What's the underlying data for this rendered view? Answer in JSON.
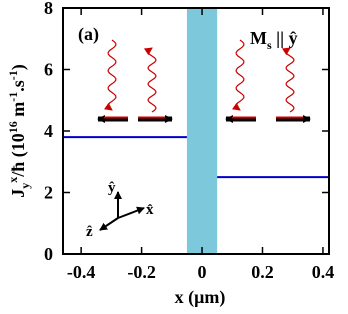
{
  "chart_data": {
    "type": "line",
    "ylabel": [
      "J",
      "y",
      "x",
      "/ħ (10",
      "16",
      " m",
      "-1",
      ".s",
      "-1",
      ")"
    ],
    "xlabel": "x (μm)",
    "panel_label": "(a)",
    "ms_label": [
      "M",
      "s",
      " || ŷ"
    ],
    "axis_labels": {
      "y": "ŷ",
      "x": "x̂",
      "z": "ẑ"
    },
    "xlim": [
      -0.46,
      0.42
    ],
    "ylim": [
      0,
      8
    ],
    "xticks": [
      -0.4,
      -0.2,
      0,
      0.2,
      0.4
    ],
    "yticks": [
      0,
      2,
      4,
      6,
      8
    ],
    "band": {
      "x": [
        -0.05,
        0.05
      ],
      "color": "#7ec8dc"
    },
    "series": [
      {
        "color": "#0000cc",
        "x": [
          -0.46,
          -0.05
        ],
        "values": [
          3.8,
          3.8
        ]
      },
      {
        "color": "#0000cc",
        "x": [
          0.05,
          0.42
        ],
        "values": [
          2.5,
          2.5
        ]
      }
    ]
  }
}
